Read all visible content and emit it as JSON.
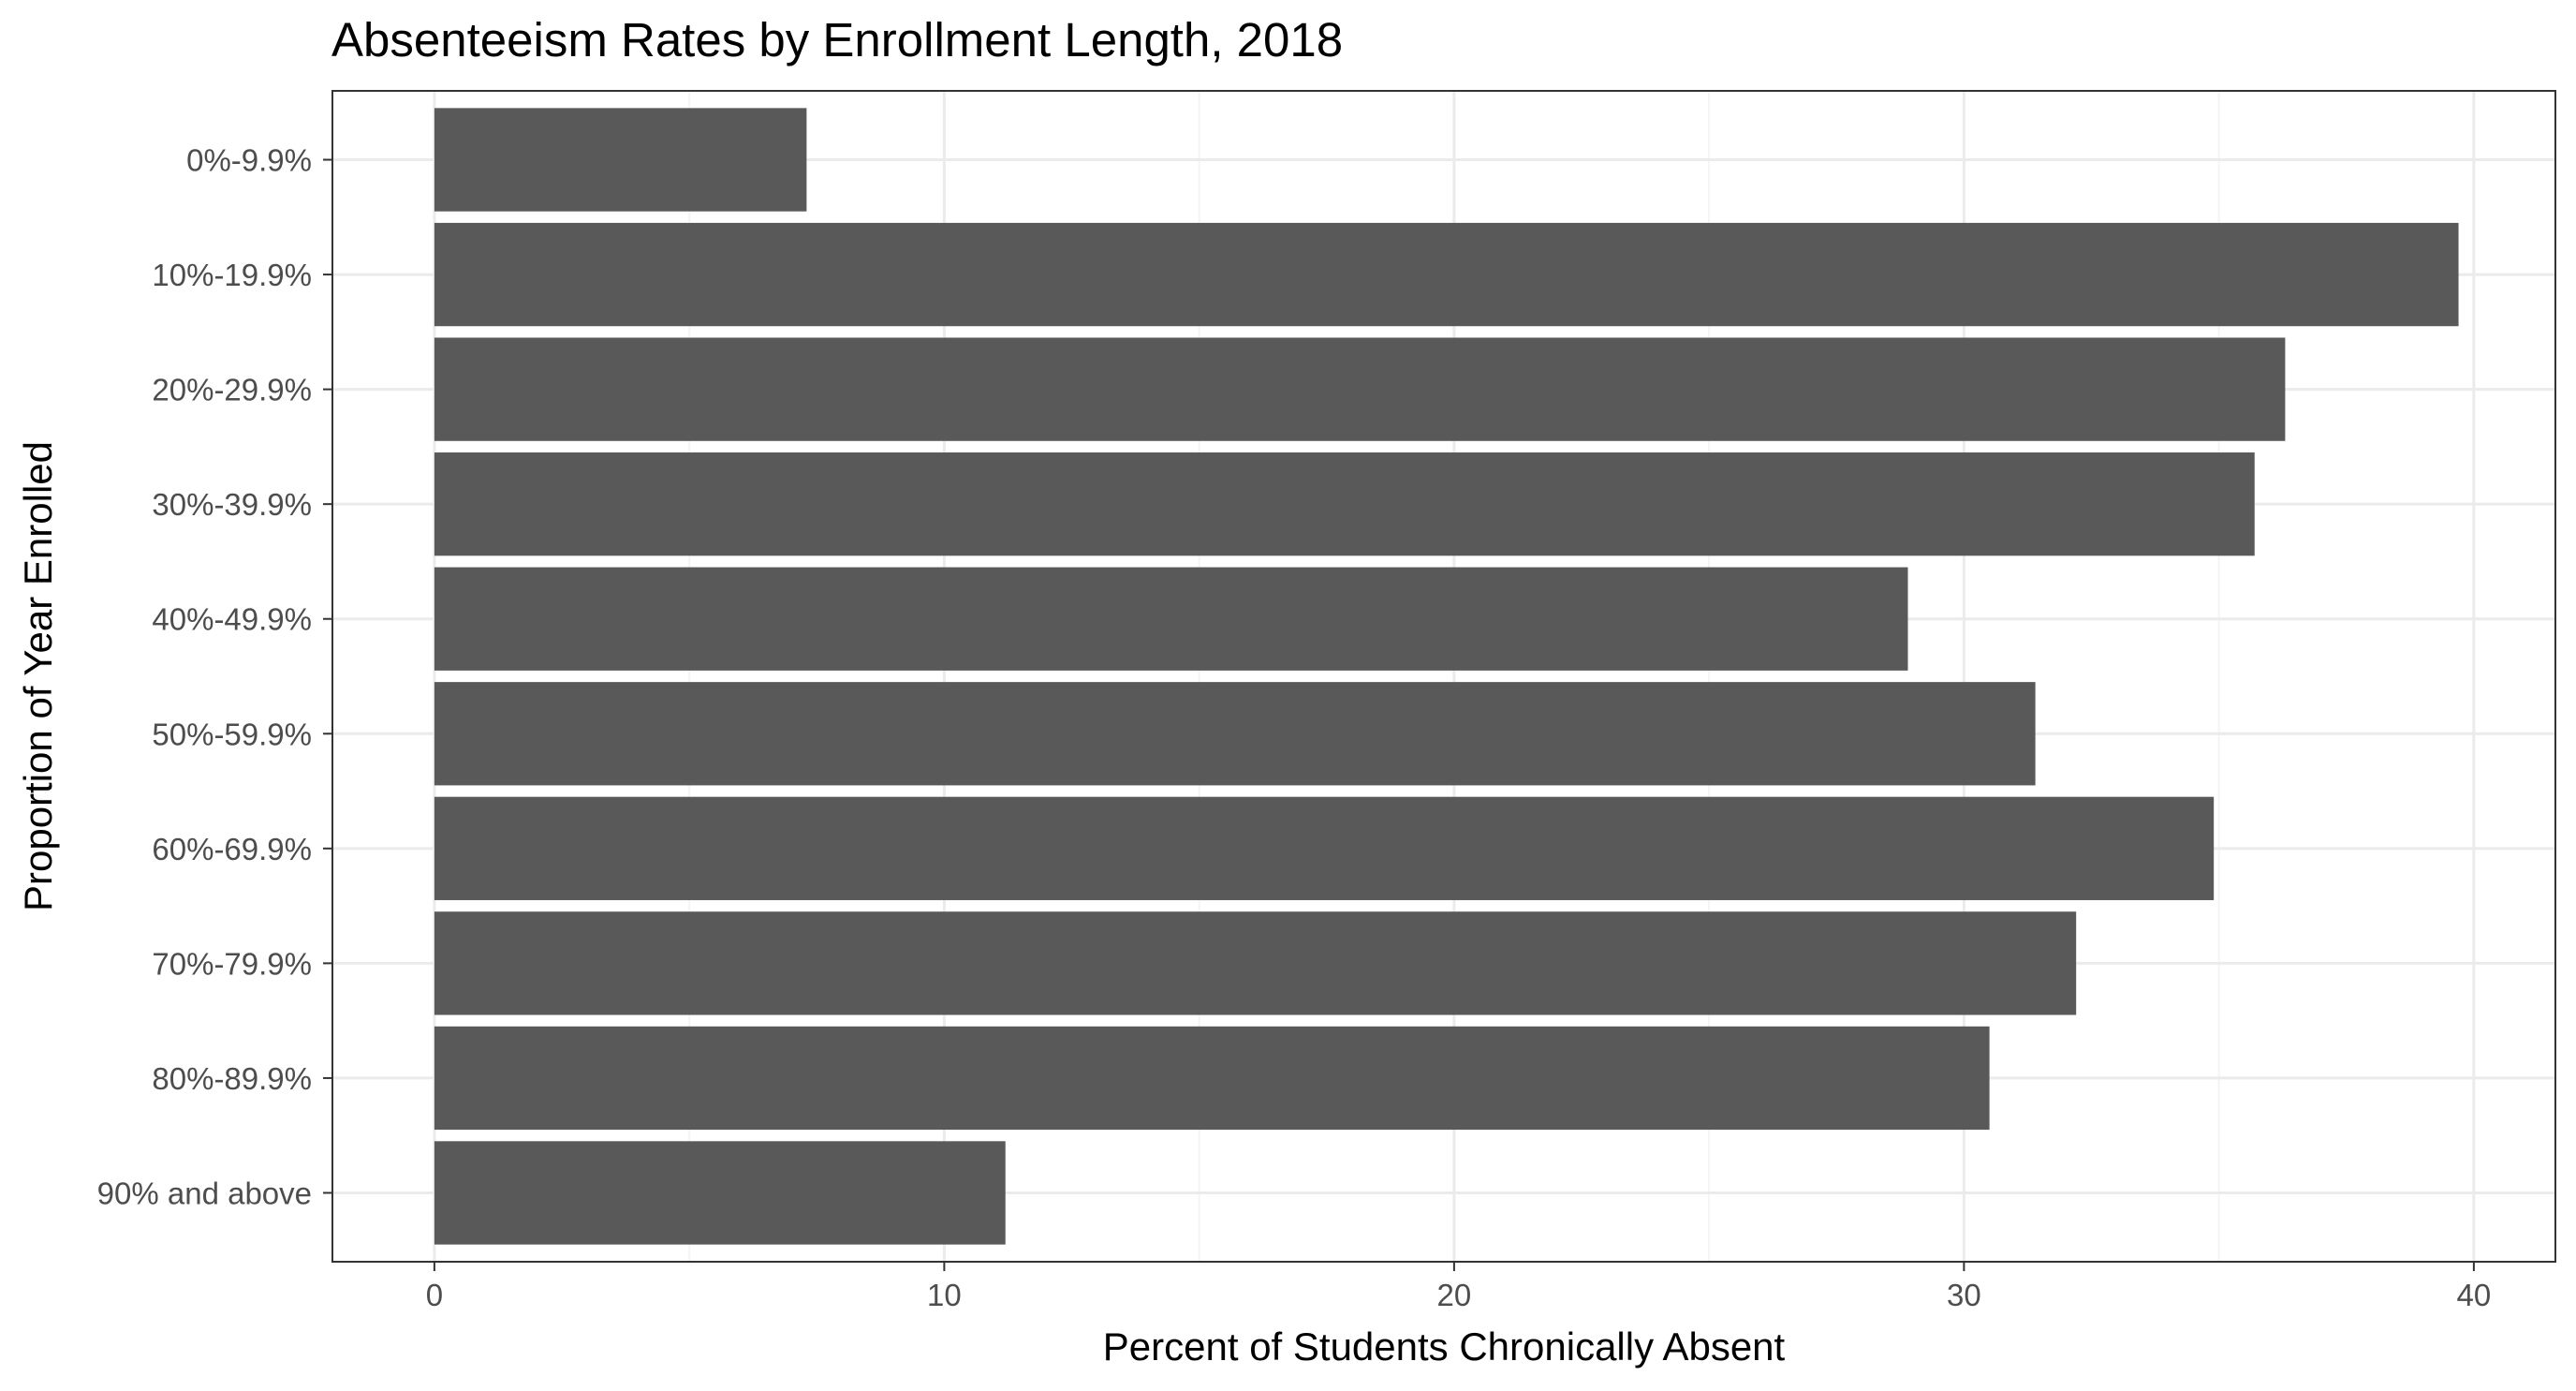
{
  "chart_data": {
    "type": "bar",
    "orientation": "horizontal",
    "title": "Absenteeism Rates by Enrollment Length, 2018",
    "xlabel": "Percent of Students Chronically Absent",
    "ylabel": "Proportion of Year Enrolled",
    "categories": [
      "0%-9.9%",
      "10%-19.9%",
      "20%-29.9%",
      "30%-39.9%",
      "40%-49.9%",
      "50%-59.9%",
      "60%-69.9%",
      "70%-79.9%",
      "80%-89.9%",
      "90% and above"
    ],
    "values": [
      7.3,
      39.7,
      36.3,
      35.7,
      28.9,
      31.4,
      34.9,
      32.2,
      30.5,
      11.2
    ],
    "xlim": [
      -2,
      41.6
    ],
    "xticks": [
      "0",
      "10",
      "20",
      "30",
      "40"
    ],
    "grid": true,
    "legend": "none",
    "colors": {
      "bar": "#595959",
      "grid_major": "#ebebeb",
      "grid_minor": "#f4f4f4",
      "panel_border": "#333333",
      "tick_label": "#4d4d4d"
    }
  }
}
